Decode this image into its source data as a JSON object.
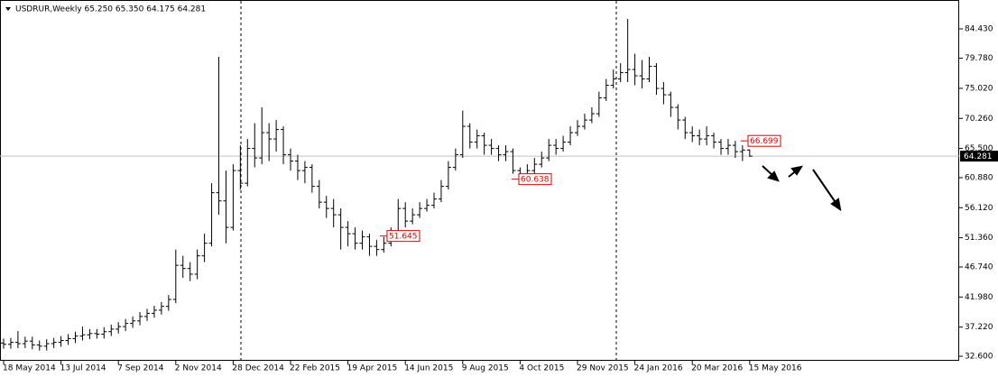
{
  "chart_data": {
    "type": "ohlc",
    "title": "USDRUR,Weekly  65.250 65.350 64.175 64.281",
    "color": "#000000",
    "grid": false,
    "categories": [
      "18 May 2014",
      null,
      null,
      null,
      null,
      null,
      null,
      null,
      "13 Jul 2014",
      null,
      null,
      null,
      null,
      null,
      null,
      null,
      "7 Sep 2014",
      null,
      null,
      null,
      null,
      null,
      null,
      null,
      "2 Nov 2014",
      null,
      null,
      null,
      null,
      null,
      null,
      null,
      "28 Dec 2014",
      null,
      null,
      null,
      null,
      null,
      null,
      null,
      "22 Feb 2015",
      null,
      null,
      null,
      null,
      null,
      null,
      null,
      "19 Apr 2015",
      null,
      null,
      null,
      null,
      null,
      null,
      null,
      "14 Jun 2015",
      null,
      null,
      null,
      null,
      null,
      null,
      null,
      "9 Aug 2015",
      null,
      null,
      null,
      null,
      null,
      null,
      null,
      "4 Oct 2015",
      null,
      null,
      null,
      null,
      null,
      null,
      null,
      "29 Nov 2015",
      null,
      null,
      null,
      null,
      null,
      null,
      null,
      "24 Jan 2016",
      null,
      null,
      null,
      null,
      null,
      null,
      null,
      "20 Mar 2016",
      null,
      null,
      null,
      null,
      null,
      null,
      null,
      "15 May 2016"
    ],
    "open": [
      34.7,
      34.5,
      34.8,
      34.6,
      35.0,
      34.4,
      34.2,
      34.6,
      34.8,
      35.1,
      35.4,
      35.8,
      36.0,
      36.2,
      36.1,
      36.5,
      36.9,
      37.3,
      37.8,
      38.2,
      38.9,
      39.4,
      39.9,
      40.5,
      41.6,
      47.0,
      46.5,
      45.6,
      48.5,
      50.5,
      58.5,
      57.2,
      53.0,
      62.0,
      60.0,
      65.5,
      64.0,
      68.0,
      67.0,
      68.5,
      64.5,
      63.5,
      62.0,
      62.5,
      59.5,
      57.0,
      56.0,
      55.0,
      53.0,
      52.0,
      50.5,
      51.5,
      50.0,
      49.5,
      50.5,
      52.0,
      56.0,
      54.0,
      55.0,
      56.0,
      56.5,
      57.5,
      59.5,
      62.5,
      64.5,
      69.0,
      66.5,
      67.5,
      66.0,
      65.5,
      64.5,
      65.0,
      62.0,
      61.0,
      62.0,
      63.0,
      64.0,
      66.0,
      65.5,
      66.5,
      68.0,
      69.0,
      70.0,
      71.0,
      73.5,
      75.5,
      76.5,
      77.5,
      78.0,
      77.0,
      76.5,
      78.5,
      75.0,
      74.0,
      72.0,
      70.0,
      68.0,
      67.5,
      67.0,
      67.5,
      66.5,
      65.5,
      66.0,
      65.0,
      65.25
    ],
    "high": [
      35.4,
      35.5,
      36.6,
      35.7,
      35.7,
      35.1,
      35.3,
      35.5,
      35.8,
      36.1,
      36.5,
      37.3,
      36.9,
      36.9,
      37.2,
      37.6,
      38.0,
      38.5,
      38.9,
      39.6,
      40.1,
      40.6,
      41.2,
      42.3,
      49.5,
      48.5,
      47.5,
      49.5,
      52.0,
      60.0,
      80.0,
      62.0,
      63.0,
      66.0,
      67.0,
      69.5,
      72.0,
      69.5,
      70.0,
      69.0,
      65.5,
      64.5,
      63.5,
      63.0,
      60.5,
      58.0,
      57.5,
      56.0,
      54.0,
      53.0,
      52.5,
      52.0,
      51.0,
      51.5,
      53.0,
      57.5,
      57.0,
      56.0,
      57.0,
      57.5,
      58.5,
      60.5,
      63.5,
      65.5,
      71.5,
      69.5,
      68.5,
      68.0,
      67.0,
      66.0,
      66.0,
      65.5,
      62.5,
      63.0,
      64.0,
      65.0,
      67.0,
      67.0,
      67.5,
      69.0,
      70.0,
      71.0,
      72.0,
      74.5,
      76.5,
      78.0,
      79.0,
      86.0,
      80.5,
      79.5,
      80.0,
      79.0,
      76.0,
      74.5,
      72.5,
      70.5,
      69.0,
      68.5,
      69.0,
      68.0,
      67.0,
      67.0,
      66.699,
      66.0,
      65.35
    ],
    "low": [
      33.8,
      33.8,
      33.9,
      33.9,
      33.7,
      33.5,
      33.5,
      33.9,
      34.1,
      34.4,
      34.7,
      35.1,
      35.3,
      35.4,
      35.4,
      35.8,
      36.2,
      36.6,
      37.1,
      37.5,
      38.2,
      38.7,
      39.2,
      39.8,
      41.0,
      45.0,
      44.5,
      44.8,
      47.5,
      50.0,
      55.0,
      50.5,
      52.5,
      59.0,
      59.5,
      62.5,
      63.0,
      63.5,
      65.0,
      63.0,
      62.0,
      60.5,
      60.0,
      58.5,
      56.0,
      54.5,
      53.0,
      49.5,
      50.0,
      49.5,
      49.5,
      48.5,
      48.5,
      49.0,
      50.0,
      51.5,
      53.0,
      53.5,
      54.5,
      55.5,
      56.0,
      57.0,
      59.0,
      62.0,
      64.0,
      65.5,
      65.5,
      64.5,
      64.5,
      63.5,
      63.5,
      61.5,
      60.638,
      60.5,
      61.5,
      62.5,
      63.5,
      64.5,
      65.0,
      66.0,
      67.5,
      68.5,
      69.5,
      70.5,
      73.0,
      75.0,
      76.0,
      76.0,
      75.5,
      75.0,
      76.0,
      74.0,
      72.5,
      70.5,
      68.5,
      67.0,
      66.5,
      66.0,
      66.0,
      65.5,
      64.5,
      64.5,
      64.0,
      63.5,
      64.175
    ],
    "close": [
      34.5,
      34.8,
      34.6,
      35.0,
      34.4,
      34.2,
      34.6,
      34.8,
      35.1,
      35.4,
      35.8,
      36.0,
      36.2,
      36.1,
      36.5,
      36.9,
      37.3,
      37.8,
      38.2,
      38.9,
      39.4,
      39.9,
      40.5,
      41.6,
      47.0,
      46.5,
      45.6,
      48.5,
      50.5,
      58.5,
      57.2,
      53.0,
      62.0,
      60.0,
      65.5,
      64.0,
      68.0,
      67.0,
      68.5,
      64.5,
      63.5,
      62.0,
      62.5,
      59.5,
      57.0,
      56.0,
      55.0,
      53.0,
      52.0,
      50.5,
      51.5,
      50.0,
      49.5,
      50.5,
      52.0,
      56.0,
      54.0,
      55.0,
      56.0,
      56.5,
      57.5,
      59.5,
      62.5,
      64.5,
      69.0,
      66.5,
      67.5,
      66.0,
      65.5,
      64.5,
      65.0,
      62.0,
      61.0,
      62.0,
      63.0,
      64.0,
      66.0,
      65.5,
      66.5,
      68.0,
      69.0,
      70.0,
      71.0,
      73.5,
      75.5,
      76.5,
      77.5,
      78.0,
      77.0,
      76.5,
      78.5,
      75.0,
      74.0,
      72.0,
      70.0,
      68.0,
      67.5,
      67.0,
      67.5,
      66.5,
      65.5,
      66.0,
      65.0,
      65.25,
      64.281
    ],
    "annotations": [
      51.645,
      60.638,
      66.699
    ],
    "ylim": [
      31.89,
      88.43
    ],
    "yticks": [
      {
        "value": 32.6,
        "label": "32.600"
      },
      {
        "value": 37.22,
        "label": "37.220"
      },
      {
        "value": 41.98,
        "label": "41.980"
      },
      {
        "value": 46.74,
        "label": "46.740"
      },
      {
        "value": 51.36,
        "label": "51.360"
      },
      {
        "value": 56.12,
        "label": "56.120"
      },
      {
        "value": 60.88,
        "label": "60.880"
      },
      {
        "value": 65.5,
        "label": "65.500"
      },
      {
        "value": 70.26,
        "label": "70.260"
      },
      {
        "value": 75.02,
        "label": "75.020"
      },
      {
        "value": 79.78,
        "label": "79.780"
      },
      {
        "value": 84.43,
        "label": "84.430"
      }
    ]
  }
}
